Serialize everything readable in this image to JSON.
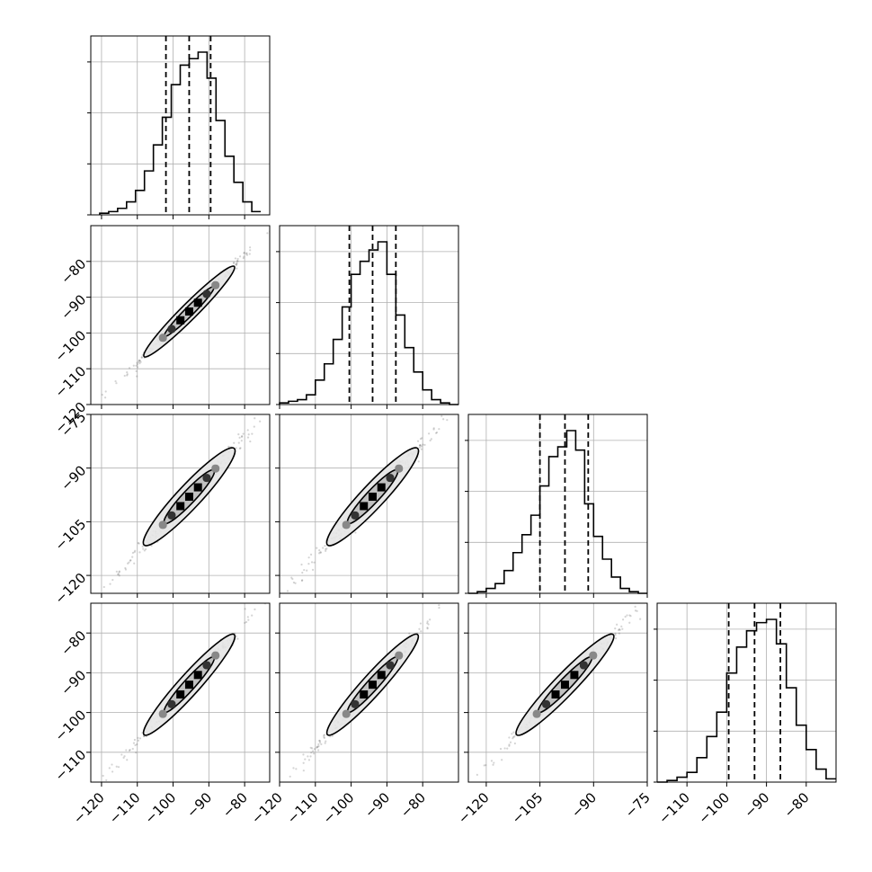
{
  "colors": {
    "hist": "#000000",
    "grid": "#b0b0b0",
    "quantile": "#000000",
    "sample": "#555555"
  },
  "chart_data": {
    "type": "corner",
    "title": "",
    "n_params": 4,
    "labels": [
      "",
      "",
      "",
      ""
    ],
    "ranges": [
      [
        -123,
        -73
      ],
      [
        -120,
        -70
      ],
      [
        -125,
        -75
      ],
      [
        -117.5,
        -72.5
      ]
    ],
    "x_ticks": [
      [
        -120,
        -110,
        -100,
        -90,
        -80
      ],
      [
        -120,
        -110,
        -100,
        -90,
        -80
      ],
      [
        -120,
        -105,
        -90,
        -75
      ],
      [
        -110,
        -100,
        -90,
        -80
      ]
    ],
    "x_tick_labels": [
      [
        "−120",
        "−110",
        "−100",
        "−90",
        "−80"
      ],
      [
        "−120",
        "−110",
        "−100",
        "−90",
        "−80"
      ],
      [
        "−120",
        "−105",
        "−90",
        "−75"
      ],
      [
        "−110",
        "−100",
        "−90",
        "−80"
      ]
    ],
    "y_ticks": [
      null,
      [
        -80,
        -90,
        -100,
        -110,
        -120
      ],
      [
        -75,
        -90,
        -105,
        -120
      ],
      [
        -80,
        -90,
        -100,
        -110
      ]
    ],
    "y_tick_labels": [
      null,
      [
        "−80",
        "−90",
        "−100",
        "−110",
        "−120"
      ],
      [
        "−75",
        "−90",
        "−105",
        "−120"
      ],
      [
        "−80",
        "−90",
        "−100",
        "−110"
      ]
    ],
    "quantiles": [
      [
        -102.0,
        -95.5,
        -89.5
      ],
      [
        -100.5,
        -94.0,
        -87.5
      ],
      [
        -105.0,
        -98.0,
        -91.5
      ],
      [
        -99.5,
        -93.0,
        -86.5
      ]
    ],
    "histograms": [
      {
        "bin_edges": [
          -120.5,
          -118,
          -115.5,
          -113,
          -110.5,
          -108,
          -105.5,
          -103,
          -100.5,
          -98,
          -95.5,
          -93,
          -90.5,
          -88,
          -85.5,
          -83,
          -80.5,
          -78,
          -75.5
        ],
        "counts": [
          0.01,
          0.02,
          0.04,
          0.08,
          0.15,
          0.27,
          0.43,
          0.6,
          0.8,
          0.92,
          0.96,
          1.0,
          0.84,
          0.58,
          0.36,
          0.2,
          0.08,
          0.02
        ]
      },
      {
        "bin_edges": [
          -120.0,
          -117.5,
          -115.0,
          -112.5,
          -110.0,
          -107.5,
          -105.0,
          -102.5,
          -100.0,
          -97.5,
          -95.0,
          -92.5,
          -90.0,
          -87.5,
          -85.0,
          -82.5,
          -80.0,
          -77.5,
          -75.0,
          -72.5,
          -70.0
        ],
        "counts": [
          0.01,
          0.02,
          0.03,
          0.06,
          0.15,
          0.25,
          0.4,
          0.6,
          0.8,
          0.88,
          0.95,
          1.0,
          0.8,
          0.55,
          0.35,
          0.2,
          0.09,
          0.03,
          0.01,
          0.0
        ]
      },
      {
        "bin_edges": [
          -125.0,
          -122.5,
          -120.0,
          -117.5,
          -115.0,
          -112.5,
          -110.0,
          -107.5,
          -105.0,
          -102.5,
          -100.0,
          -97.5,
          -95.0,
          -92.5,
          -90.0,
          -87.5,
          -85.0,
          -82.5,
          -80.0,
          -77.5,
          -75.0
        ],
        "counts": [
          0.0,
          0.01,
          0.03,
          0.06,
          0.14,
          0.25,
          0.36,
          0.48,
          0.66,
          0.84,
          0.9,
          1.0,
          0.88,
          0.55,
          0.35,
          0.21,
          0.1,
          0.03,
          0.01,
          0.0
        ]
      },
      {
        "bin_edges": [
          -117.5,
          -115.0,
          -112.5,
          -110.0,
          -107.5,
          -105.0,
          -102.5,
          -100.0,
          -97.5,
          -95.0,
          -92.5,
          -90.0,
          -87.5,
          -85.0,
          -82.5,
          -80.0,
          -77.5,
          -75.0,
          -72.5
        ],
        "counts": [
          0.0,
          0.01,
          0.03,
          0.06,
          0.15,
          0.28,
          0.43,
          0.67,
          0.83,
          0.93,
          0.98,
          1.0,
          0.85,
          0.58,
          0.35,
          0.2,
          0.08,
          0.02
        ]
      }
    ],
    "pairs": [
      {
        "row": 1,
        "col": 0,
        "rho": 0.996
      },
      {
        "row": 2,
        "col": 0,
        "rho": 0.992
      },
      {
        "row": 2,
        "col": 1,
        "rho": 0.992
      },
      {
        "row": 3,
        "col": 0,
        "rho": 0.994
      },
      {
        "row": 3,
        "col": 1,
        "rho": 0.994
      },
      {
        "row": 3,
        "col": 2,
        "rho": 0.994
      }
    ],
    "centers": [
      -95.5,
      -94.0,
      -98.0,
      -93.0
    ],
    "sigmas": [
      7.0,
      7.0,
      7.5,
      7.0
    ],
    "grid": true
  }
}
